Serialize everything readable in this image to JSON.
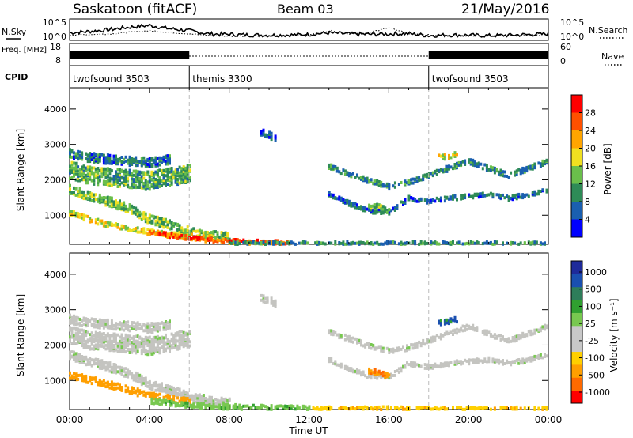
{
  "header": {
    "station": "Saskatoon (fitACF)",
    "beam": "Beam 03",
    "date": "21/May/2016"
  },
  "colors": {
    "background": "#ffffff",
    "axes": "#000000",
    "power_scale": [
      "#0000ff",
      "#1a5fb0",
      "#2e8b57",
      "#6abf4b",
      "#f0e020",
      "#ffa500",
      "#ff5000",
      "#ff0000"
    ],
    "velocity_scale": [
      "#ff0000",
      "#ff6a00",
      "#ff9f00",
      "#ffd000",
      "#c8c8c8",
      "#c8c8c8",
      "#78c850",
      "#30a030",
      "#2e7d5a",
      "#1a4fb0",
      "#1e2a9a"
    ],
    "ground_scatter": "#c4c4c0"
  },
  "chart_data": [
    {
      "type": "line",
      "name": "noise-panel",
      "left_label": "N.Sky",
      "right_label": "N.Search",
      "left_ticks": [
        "10^5",
        "10^0"
      ],
      "right_ticks": [
        "10^5",
        "10^0"
      ],
      "series": [
        {
          "name": "N.Sky",
          "style": "solid",
          "x": [
            0,
            1,
            2,
            3,
            4,
            5,
            6,
            7,
            8,
            9,
            10,
            11,
            12,
            13,
            14,
            15,
            16,
            17,
            18,
            19,
            20,
            21,
            22,
            23,
            24
          ],
          "y": [
            0.35,
            0.42,
            0.5,
            0.62,
            0.7,
            0.55,
            0.45,
            0.3,
            0.28,
            0.25,
            0.24,
            0.25,
            0.28,
            0.35,
            0.3,
            0.28,
            0.3,
            0.32,
            0.22,
            0.25,
            0.24,
            0.22,
            0.24,
            0.27,
            0.3
          ]
        },
        {
          "name": "N.Search",
          "style": "dotted",
          "x": [
            0,
            2,
            4,
            6,
            7,
            8,
            10,
            12,
            13,
            14,
            15,
            16,
            17,
            18,
            20,
            22,
            24
          ],
          "y": [
            0.25,
            0.3,
            0.45,
            0.3,
            0.22,
            0.2,
            0.2,
            0.25,
            0.45,
            0.3,
            0.35,
            0.6,
            0.3,
            0.25,
            0.2,
            0.22,
            0.25
          ]
        }
      ]
    },
    {
      "type": "line",
      "name": "freq-panel",
      "left_label": "Freq. [MHz]",
      "right_label": "Nave",
      "left_ticks": [
        "18",
        "8"
      ],
      "right_ticks": [
        "60",
        "0"
      ],
      "series": [
        {
          "name": "Freq",
          "style": "band",
          "x": [
            0,
            6
          ],
          "y": [
            12,
            12
          ]
        },
        {
          "name": "Freq",
          "style": "band",
          "x": [
            18,
            24
          ],
          "y": [
            12,
            12
          ]
        },
        {
          "name": "Nave",
          "style": "dotted",
          "x": [
            6,
            18
          ],
          "y": [
            12,
            12
          ]
        }
      ]
    },
    {
      "type": "table",
      "name": "cpid-panel",
      "label": "CPID",
      "entries": [
        {
          "start": 0,
          "label": "twofsound 3503"
        },
        {
          "start": 6,
          "label": "themis 3300"
        },
        {
          "start": 18,
          "label": "twofsound 3503"
        }
      ]
    },
    {
      "type": "heatmap",
      "name": "power-panel",
      "ylabel": "Slant Range [km]",
      "ylim": [
        180,
        4600
      ],
      "yticks": [
        1000,
        2000,
        3000,
        4000
      ],
      "xlim": [
        0,
        24
      ],
      "colorbar": {
        "label": "Power [dB]",
        "ticks": [
          "4",
          "8",
          "12",
          "16",
          "20",
          "24",
          "28"
        ],
        "range": [
          0,
          32
        ]
      },
      "series": [
        {
          "name": "upper-band-early",
          "x": [
            0,
            1,
            2,
            3,
            4,
            5,
            6
          ],
          "y": [
            2300,
            2150,
            2100,
            2050,
            2000,
            2100,
            2200
          ],
          "width_km": 500,
          "value": 12
        },
        {
          "name": "upper-band-top",
          "x": [
            0,
            1,
            2,
            3,
            4,
            5
          ],
          "y": [
            2750,
            2650,
            2600,
            2550,
            2500,
            2600
          ],
          "width_km": 250,
          "value": 8
        },
        {
          "name": "descending-band",
          "x": [
            0,
            1,
            2,
            3,
            4,
            5,
            6,
            7,
            8
          ],
          "y": [
            1750,
            1550,
            1400,
            1200,
            900,
            750,
            550,
            450,
            400
          ],
          "width_km": 250,
          "value": 14
        },
        {
          "name": "low-band",
          "x": [
            0,
            1,
            2,
            3,
            4,
            5,
            6,
            7
          ],
          "y": [
            1100,
            900,
            750,
            650,
            550,
            480,
            420,
            380
          ],
          "width_km": 150,
          "value": 18
        },
        {
          "name": "near-range-strong",
          "x": [
            4,
            5,
            6,
            7,
            8,
            9,
            10,
            11
          ],
          "y": [
            520,
            450,
            380,
            320,
            280,
            260,
            250,
            240
          ],
          "width_km": 120,
          "value": 26
        },
        {
          "name": "near-range",
          "x": [
            8,
            10,
            12,
            14,
            16,
            18,
            20,
            22,
            24
          ],
          "y": [
            240,
            230,
            230,
            230,
            230,
            230,
            230,
            230,
            230
          ],
          "width_km": 80,
          "value": 10
        },
        {
          "name": "evening-upper",
          "x": [
            13,
            14,
            15,
            16,
            17,
            18,
            19,
            20,
            21,
            22,
            23,
            24
          ],
          "y": [
            2400,
            2200,
            2000,
            1850,
            1950,
            2150,
            2350,
            2550,
            2350,
            2150,
            2350,
            2550
          ],
          "width_km": 150,
          "value": 9
        },
        {
          "name": "evening-mid",
          "x": [
            13,
            14,
            15,
            16,
            17,
            18,
            19,
            20,
            21,
            22,
            23,
            24
          ],
          "y": [
            1600,
            1350,
            1150,
            1100,
            1500,
            1400,
            1500,
            1550,
            1600,
            1500,
            1600,
            1750
          ],
          "width_km": 120,
          "value": 7
        },
        {
          "name": "patch-19h",
          "x": [
            18.5,
            19,
            19.5
          ],
          "y": [
            2650,
            2700,
            2750
          ],
          "width_km": 150,
          "value": 18
        },
        {
          "name": "patch-16h",
          "x": [
            15,
            15.5,
            16
          ],
          "y": [
            1300,
            1250,
            1150
          ],
          "width_km": 150,
          "value": 14
        },
        {
          "name": "patch-10h",
          "x": [
            9.6,
            10,
            10.3
          ],
          "y": [
            3350,
            3300,
            3200
          ],
          "width_km": 200,
          "value": 5
        }
      ]
    },
    {
      "type": "heatmap",
      "name": "velocity-panel",
      "ylabel": "Slant Range [km]",
      "xlabel": "Time UT",
      "ylim": [
        180,
        4600
      ],
      "yticks": [
        1000,
        2000,
        3000,
        4000
      ],
      "xlim": [
        0,
        24
      ],
      "xticks": [
        "00:00",
        "04:00",
        "08:00",
        "12:00",
        "16:00",
        "20:00",
        "00:00"
      ],
      "colorbar": {
        "label": "Velocity [m s⁻¹]",
        "ticks": [
          "1000",
          "500",
          "100",
          "25",
          "-25",
          "-100",
          "-500",
          "-1000"
        ]
      },
      "series": [
        {
          "name": "gs-upper-early",
          "x": [
            0,
            1,
            2,
            3,
            4,
            5,
            6
          ],
          "y": [
            2300,
            2150,
            2100,
            2050,
            2000,
            2100,
            2200
          ],
          "width_km": 500,
          "value": "gs"
        },
        {
          "name": "gs-top",
          "x": [
            0,
            1,
            2,
            3,
            4,
            5
          ],
          "y": [
            2750,
            2650,
            2600,
            2550,
            2500,
            2600
          ],
          "width_km": 250,
          "value": "gs"
        },
        {
          "name": "gs-descending",
          "x": [
            0,
            1,
            2,
            3,
            4,
            5,
            6,
            7,
            8
          ],
          "y": [
            1750,
            1550,
            1400,
            1200,
            900,
            750,
            550,
            450,
            400
          ],
          "width_km": 250,
          "value": "gs"
        },
        {
          "name": "low-band-orange",
          "x": [
            0,
            1,
            2,
            3,
            4,
            5,
            6
          ],
          "y": [
            1150,
            1050,
            900,
            750,
            600,
            500,
            420
          ],
          "width_km": 200,
          "value": -200
        },
        {
          "name": "near-range-mixed",
          "x": [
            4,
            5,
            6,
            7,
            8,
            9,
            10,
            11,
            12
          ],
          "y": [
            450,
            380,
            330,
            300,
            280,
            260,
            250,
            240,
            240
          ],
          "width_km": 150,
          "value": 80
        },
        {
          "name": "near-range-late",
          "x": [
            12,
            14,
            16,
            18,
            20,
            22,
            24
          ],
          "y": [
            230,
            240,
            240,
            230,
            230,
            230,
            230
          ],
          "width_km": 100,
          "value": -80
        },
        {
          "name": "gs-evening",
          "x": [
            13,
            14,
            15,
            16,
            17,
            18,
            19,
            20,
            21,
            22,
            23,
            24
          ],
          "y": [
            2400,
            2200,
            2000,
            1850,
            1950,
            2150,
            2350,
            2550,
            2350,
            2150,
            2350,
            2550
          ],
          "width_km": 150,
          "value": "gs"
        },
        {
          "name": "gs-evening-mid",
          "x": [
            13,
            14,
            15,
            16,
            17,
            18,
            19,
            20,
            21,
            22,
            23,
            24
          ],
          "y": [
            1600,
            1350,
            1150,
            1100,
            1500,
            1400,
            1500,
            1550,
            1600,
            1500,
            1600,
            1750
          ],
          "width_km": 120,
          "value": "gs"
        },
        {
          "name": "patch-19h-vel",
          "x": [
            18.5,
            19,
            19.5
          ],
          "y": [
            2650,
            2700,
            2750
          ],
          "width_km": 150,
          "value": 700
        },
        {
          "name": "patch-16h-vel",
          "x": [
            15,
            15.5,
            16
          ],
          "y": [
            1300,
            1250,
            1150
          ],
          "width_km": 150,
          "value": -400
        },
        {
          "name": "patch-10h-vel",
          "x": [
            9.6,
            10,
            10.3
          ],
          "y": [
            3350,
            3300,
            3200
          ],
          "width_km": 200,
          "value": "gs"
        }
      ]
    }
  ]
}
